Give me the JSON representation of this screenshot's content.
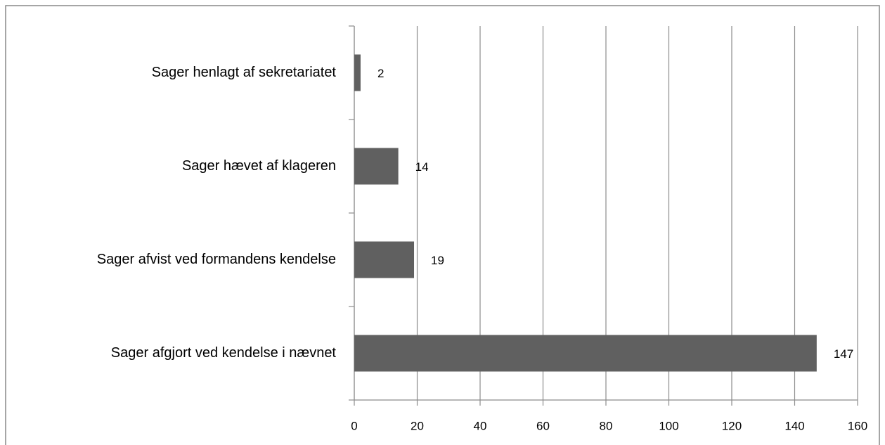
{
  "chart_data": {
    "type": "bar",
    "orientation": "horizontal",
    "categories": [
      "Sager henlagt af sekretariatet",
      "Sager hævet af klageren",
      "Sager afvist ved formandens kendelse",
      "Sager afgjort ved kendelse i nævnet"
    ],
    "values": [
      2,
      14,
      19,
      147
    ],
    "color": "#606060",
    "xlim": [
      0,
      160
    ],
    "xticks": [
      0,
      20,
      40,
      60,
      80,
      100,
      120,
      140,
      160
    ],
    "grid": true
  }
}
